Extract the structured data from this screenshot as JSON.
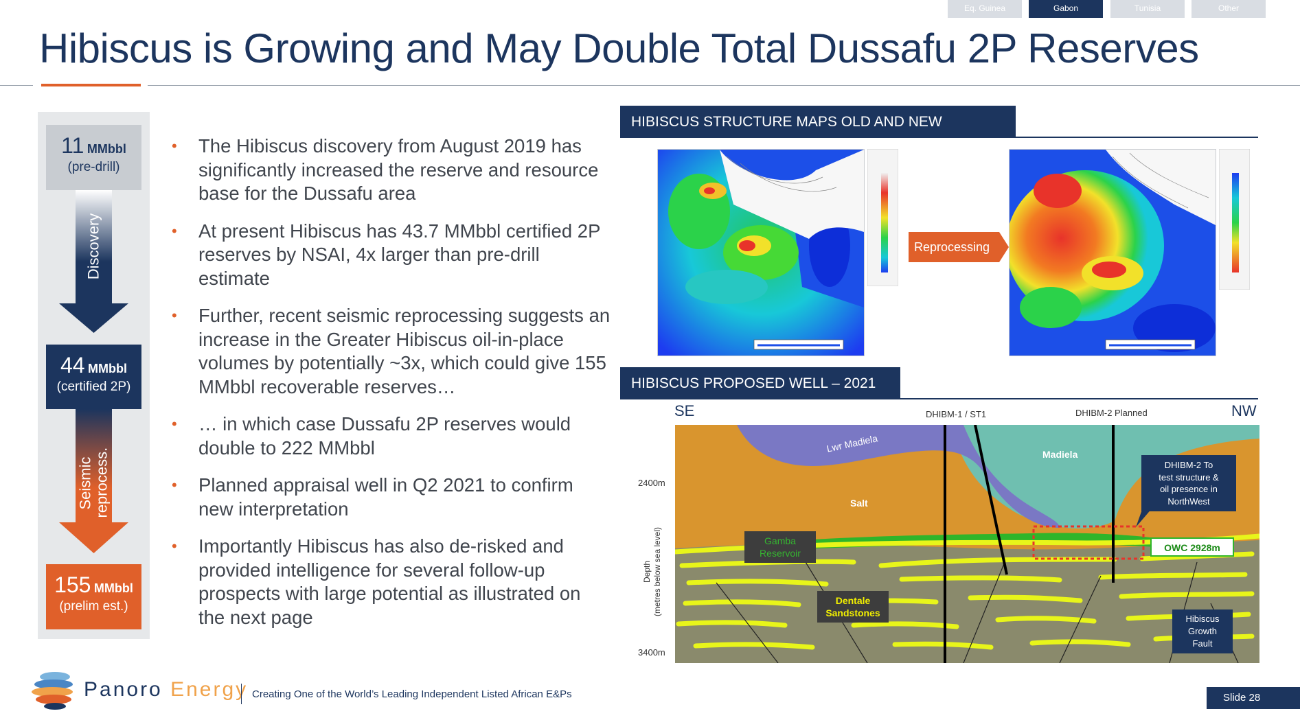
{
  "nav": {
    "tabs": [
      {
        "label": "Eq. Guinea",
        "active": false
      },
      {
        "label": "Gabon",
        "active": true
      },
      {
        "label": "Tunisia",
        "active": false
      },
      {
        "label": "Other",
        "active": false
      }
    ]
  },
  "page_title": "Hibiscus is Growing and May Double Total Dussafu 2P Reserves",
  "flow": {
    "box1": {
      "number": "11",
      "unit": "MMbbl",
      "sub": "(pre-drill)"
    },
    "arrow1_label": "Discovery",
    "box2": {
      "number": "44",
      "unit": "MMbbl",
      "sub": "(certified 2P)"
    },
    "arrow2_label_line1": "Seismic",
    "arrow2_label_line2": "reprocess.",
    "box3": {
      "number": "155",
      "unit": "MMbbl",
      "sub": "(prelim est.)"
    }
  },
  "bullets": [
    "The Hibiscus discovery from August 2019 has significantly increased the reserve and resource base for the Dussafu area",
    "At present Hibiscus has 43.7 MMbbl certified 2P reserves by NSAI, 4x larger than pre-drill estimate",
    "Further, recent seismic reprocessing suggests an increase in the Greater Hibiscus oil-in-place volumes by potentially ~3x, which could give 155 MMbbl recoverable reserves…",
    "… in which case Dussafu 2P reserves would double to 222 MMbbl",
    "Planned appraisal well in Q2 2021 to confirm new interpretation",
    "Importantly Hibiscus has also de-risked and provided intelligence for several follow-up prospects with large potential as illustrated on the next page"
  ],
  "maps_section": {
    "header": "HIBISCUS STRUCTURE MAPS OLD AND NEW",
    "arrow_label": "Reprocessing"
  },
  "well_section": {
    "header": "HIBISCUS PROPOSED WELL – 2021",
    "left_dir": "SE",
    "right_dir": "NW",
    "well1": "DHIBM-1 / ST1",
    "well2": "DHIBM-2 Planned",
    "depth_top": "2400m",
    "depth_bottom": "3400m",
    "depth_axis_line1": "Depth",
    "depth_axis_line2": "(metres below sea level)",
    "label_lwr_madiela": "Lwr Madiela",
    "label_madiela": "Madiela",
    "label_salt": "Salt",
    "gamba_line1": "Gamba",
    "gamba_line2": "Reservoir",
    "dentale_line1": "Dentale",
    "dentale_line2": "Sandstones",
    "owc": "OWC 2928m",
    "dhibm2_note": [
      "DHIBM-2 To",
      "test structure &",
      "oil presence in",
      "NorthWest"
    ],
    "fault_note": [
      "Hibiscus",
      "Growth",
      "Fault"
    ]
  },
  "footer": {
    "brand_part1": "Panoro",
    "brand_part2": "Energy",
    "tagline": "Creating One of the World’s Leading Independent Listed African E&Ps",
    "slide_number": "Slide 28"
  },
  "colors": {
    "navy": "#1c355e",
    "orange": "#e0602a",
    "grey_box": "#c8ccd1",
    "salt": "#d9952e",
    "madiela": "#6fbfb0",
    "lwr_madiela": "#7a78c4",
    "sand": "#e8f51a",
    "oil": "#2fb52a",
    "basement": "#8a8a6c"
  }
}
